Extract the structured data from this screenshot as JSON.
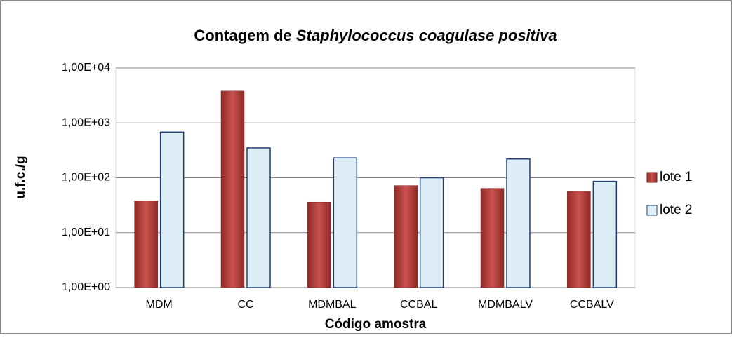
{
  "chart_data": {
    "type": "bar",
    "title": [
      "Contagem de",
      "Staphylococcus coagulase positiva"
    ],
    "x_label": "Código amostra",
    "y_label": "u.f.c./g",
    "categories": [
      "MDM",
      "CC",
      "MDMBAL",
      "CCBAL",
      "MDMBALV",
      "CCBALV"
    ],
    "series": [
      {
        "name": "lote 1",
        "color": "#b84440",
        "values": [
          38,
          3800,
          36,
          72,
          64,
          57
        ]
      },
      {
        "name": "lote 2",
        "color": "#dcedf5",
        "values": [
          680,
          350,
          230,
          100,
          220,
          86
        ]
      }
    ],
    "log_scale": true,
    "ylim": [
      1,
      10000
    ],
    "yticks": [
      {
        "value": 1,
        "label": "1,00E+00"
      },
      {
        "value": 10,
        "label": "1,00E+01"
      },
      {
        "value": 100,
        "label": "1,00E+02"
      },
      {
        "value": 1000,
        "label": "1,00E+03"
      },
      {
        "value": 10000,
        "label": "1,00E+04"
      }
    ],
    "grid": true,
    "legend": "right"
  }
}
